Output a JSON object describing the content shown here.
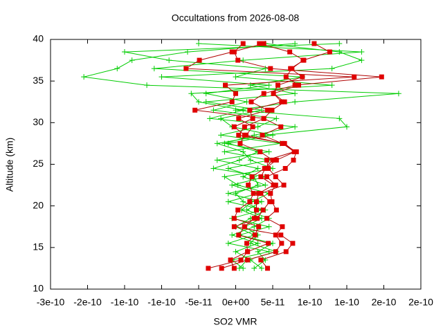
{
  "chart_data": {
    "type": "line",
    "title": "Occultations from 2026-08-08",
    "xlabel": "SO2 VMR",
    "ylabel": "Altitude (km)",
    "y": [
      12.5,
      13.5,
      14.5,
      15.5,
      16.5,
      17.5,
      18.5,
      19.5,
      20.5,
      21.5,
      22.5,
      23.5,
      24.5,
      25.5,
      26.5,
      27.5,
      28.5,
      29.5,
      30.5,
      31.5,
      32.5,
      33.5,
      34.5,
      35.5,
      36.5,
      37.5,
      38.5,
      39.5
    ],
    "series": [
      {
        "color": "#00cc00",
        "marker": "plus",
        "x": [
          5e-12,
          1.5e-11,
          5.5e-11,
          2e-11,
          3e-11,
          1.2e-11,
          3.5e-11,
          8e-12,
          2.2e-11,
          4.5e-11,
          3e-12,
          -1.5e-11,
          5e-11,
          2e-11,
          1e-11,
          -2.5e-11,
          4e-11,
          1.5e-10,
          1.4e-10,
          0.0,
          8e-11,
          2.2e-10,
          -1.2e-10,
          -2.05e-10,
          -1.6e-10,
          -1.4e-10,
          -6.5e-11,
          8e-11
        ]
      },
      {
        "color": "#00cc00",
        "marker": "plus",
        "x": [
          2.5e-11,
          4e-11,
          3e-11,
          5e-11,
          5e-12,
          4.5e-11,
          -5e-12,
          3.5e-11,
          1e-11,
          0.0,
          3e-11,
          2.5e-11,
          -1e-11,
          4.5e-11,
          -1.5e-11,
          6e-11,
          -2e-11,
          3e-11,
          5.5e-11,
          -3e-11,
          1.5e-11,
          -4e-11,
          4.5e-11,
          -1e-10,
          1.3e-10,
          1.7e-10,
          1.4e-10,
          4e-11
        ]
      },
      {
        "color": "#00cc00",
        "marker": "plus",
        "x": [
          1e-11,
          -5e-12,
          4.5e-11,
          -1e-11,
          2.5e-11,
          0.0,
          2e-11,
          4e-11,
          -1e-11,
          3e-11,
          -5e-12,
          4e-11,
          -3e-11,
          5e-12,
          3e-11,
          -1e-11,
          5e-11,
          -5e-12,
          -2e-11,
          3.5e-11,
          -4e-11,
          8e-11,
          2e-11,
          9e-11,
          -1.1e-10,
          1e-11,
          1.7e-10,
          -5e-11
        ]
      },
      {
        "color": "#00cc00",
        "marker": "plus",
        "x": [
          3.5e-11,
          2e-11,
          0.0,
          3e-11,
          -5e-12,
          2.5e-11,
          4.5e-11,
          1.5e-11,
          3.5e-11,
          -1e-11,
          4e-11,
          1e-11,
          3e-11,
          -2.5e-11,
          4.5e-11,
          -1.5e-11,
          2.5e-11,
          8e-11,
          -3.5e-11,
          1e-11,
          -5e-11,
          -6e-11,
          1.3e-10,
          0.0,
          4e-11,
          -9e-11,
          -1.5e-10,
          1.4e-10
        ]
      },
      {
        "color": "#e00000",
        "line_color": "#b00000",
        "marker": "square",
        "x": [
          -3.7e-11,
          7e-12,
          1.6e-11,
          1.5e-11,
          2.6e-11,
          3.1e-11,
          -2e-12,
          3e-12,
          1.9e-11,
          2.4e-11,
          1.7e-11,
          2.2e-11,
          3.9e-11,
          5e-11,
          3.3e-11,
          6e-12,
          1.2e-11,
          -2e-12,
          2.3e-11,
          1.9e-11,
          6.2e-11,
          5.1e-11,
          8.5e-11,
          6.8e-11,
          7.6e-11,
          9.1e-11,
          1.27e-10,
          1.06e-10
        ]
      },
      {
        "color": "#e00000",
        "line_color": "#b00000",
        "marker": "square",
        "x": [
          -1.9e-11,
          1.6e-11,
          5.4e-11,
          6.2e-11,
          5.4e-11,
          6.3e-11,
          4.2e-11,
          5.5e-11,
          4.9e-11,
          4.7e-11,
          5.4e-11,
          4.2e-11,
          6.7e-11,
          7.8e-11,
          8.2e-11,
          6.3e-11,
          3.6e-11,
          6.1e-11,
          3.8e-11,
          4.9e-11,
          6.6e-11,
          5.1e-11,
          5.7e-11,
          9e-11,
          7.4e-11,
          9.2e-11,
          7.3e-11,
          3.2e-11
        ]
      },
      {
        "color": "#e00000",
        "line_color": "#b00000",
        "marker": "square",
        "x": [
          -2e-12,
          -7e-12,
          1.6e-11,
          4.4e-11,
          4e-12,
          1.2e-11,
          2.5e-11,
          2.8e-11,
          2.8e-11,
          3.1e-11,
          5.1e-11,
          3.4e-11,
          4e-11,
          5.5e-11,
          8e-11,
          6.6e-11,
          4e-12,
          1.2e-11,
          3.8e-11,
          -5.5e-11,
          -5e-12,
          0.0,
          -1.4e-11,
          1.6e-10,
          -6.7e-11,
          -4.9e-11,
          -5e-12,
          3.8e-11
        ]
      },
      {
        "color": "#e00000",
        "line_color": "#b00000",
        "marker": "square",
        "x": [
          4.3e-11,
          3.4e-11,
          6.8e-11,
          7.7e-11,
          6.1e-11,
          -2e-12,
          2.9e-11,
          3.7e-11,
          4.6e-11,
          3.4e-11,
          6.5e-11,
          5.4e-11,
          4.4e-11,
          4.2e-11,
          7.9e-11,
          6.3e-11,
          1.4e-11,
          2.3e-11,
          4e-12,
          4.3e-11,
          2.1e-11,
          3.8e-11,
          8e-11,
          1.97e-10,
          4.7e-11,
          3e-12,
          -2e-12,
          1e-11
        ]
      }
    ],
    "xlim": [
      -2.5e-10,
      2.5e-10
    ],
    "xticks": [
      {
        "value": -2.5e-10,
        "label": "-3e-10"
      },
      {
        "value": -2e-10,
        "label": "-2e-10"
      },
      {
        "value": -1.5e-10,
        "label": "-1e-10"
      },
      {
        "value": -1e-10,
        "label": "-1e-10"
      },
      {
        "value": -5e-11,
        "label": "-5e-11"
      },
      {
        "value": 0,
        "label": "0e+00"
      },
      {
        "value": 5e-11,
        "label": "5e-11"
      },
      {
        "value": 1e-10,
        "label": "1e-10"
      },
      {
        "value": 1.5e-10,
        "label": "1e-10"
      },
      {
        "value": 2e-10,
        "label": "2e-10"
      },
      {
        "value": 2.5e-10,
        "label": "2e-10"
      }
    ],
    "ylim": [
      10,
      40
    ],
    "yticks": [
      10,
      15,
      20,
      25,
      30,
      35,
      40
    ],
    "grid": false
  }
}
